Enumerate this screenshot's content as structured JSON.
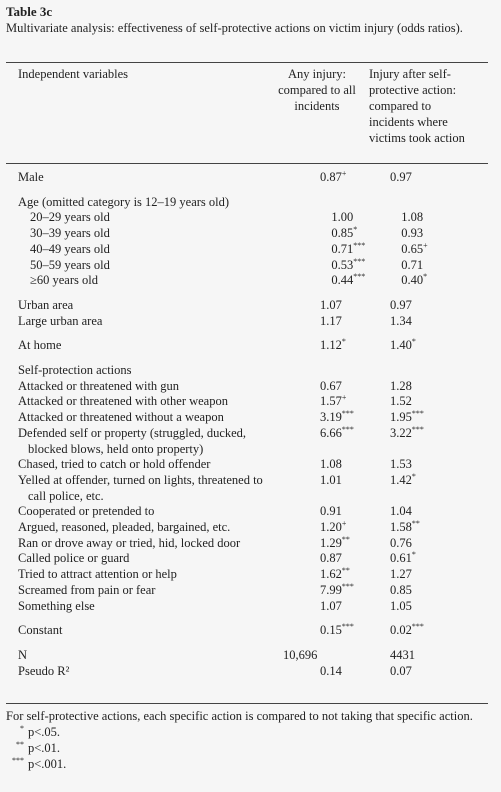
{
  "table_label": "Table 3c",
  "caption": "Multivariate analysis: effectiveness of self-protective actions on victim injury (odds ratios).",
  "table": {
    "headers": [
      "Independent variables",
      "Any injury: compared to all incidents",
      "Injury after self-protective action: compared to incidents where victims took action"
    ],
    "groups": [
      {
        "rows": [
          {
            "label": "Male",
            "any": "0.87",
            "any_sig": "+",
            "after": "0.97"
          }
        ]
      },
      {
        "heading": "Age (omitted category is 12–19 years old)",
        "rows": [
          {
            "label": "20–29 years old",
            "any": "1.00",
            "after": "1.08"
          },
          {
            "label": "30–39 years old",
            "any": "0.85",
            "any_sig": "*",
            "after": "0.93"
          },
          {
            "label": "40–49 years old",
            "any": "0.71",
            "any_sig": "***",
            "after": "0.65",
            "after_sig": "+"
          },
          {
            "label": "50–59 years old",
            "any": "0.53",
            "any_sig": "***",
            "after": "0.71"
          },
          {
            "label": "≥60 years old",
            "any": "0.44",
            "any_sig": "***",
            "after": "0.40",
            "after_sig": "*"
          }
        ]
      },
      {
        "rows": [
          {
            "label": "Urban area",
            "any": "1.07",
            "after": "0.97"
          },
          {
            "label": "Large urban area",
            "any": "1.17",
            "after": "1.34"
          }
        ]
      },
      {
        "rows": [
          {
            "label": "At home",
            "any": "1.12",
            "any_sig": "*",
            "after": "1.40",
            "after_sig": "*"
          }
        ]
      },
      {
        "heading": "Self-protection actions",
        "rows": [
          {
            "label": "Attacked or threatened with gun",
            "any": "0.67",
            "after": "1.28"
          },
          {
            "label": "Attacked or threatened with other weapon",
            "any": "1.57",
            "any_sig": "+",
            "after": "1.52"
          },
          {
            "label": "Attacked or threatened without a weapon",
            "any": "3.19",
            "any_sig": "***",
            "after": "1.95",
            "after_sig": "***"
          },
          {
            "label": "Defended self or property (struggled, ducked, blocked blows, held onto property)",
            "any": "6.66",
            "any_sig": "***",
            "after": "3.22",
            "after_sig": "***"
          },
          {
            "label": "Chased, tried to catch or hold offender",
            "any": "1.08",
            "after": "1.53"
          },
          {
            "label": "Yelled at offender, turned on lights, threatened to call police, etc.",
            "any": "1.01",
            "after": "1.42",
            "after_sig": "*"
          },
          {
            "label": "Cooperated or pretended to",
            "any": "0.91",
            "after": "1.04"
          },
          {
            "label": "Argued, reasoned, pleaded, bargained, etc.",
            "any": "1.20",
            "any_sig": "+",
            "after": "1.58",
            "after_sig": "**"
          },
          {
            "label": "Ran or drove away or tried, hid, locked door",
            "any": "1.29",
            "any_sig": "**",
            "after": "0.76"
          },
          {
            "label": "Called police or guard",
            "any": "0.87",
            "after": "0.61",
            "after_sig": "*"
          },
          {
            "label": "Tried to attract attention or help",
            "any": "1.62",
            "any_sig": "**",
            "after": "1.27"
          },
          {
            "label": "Screamed from pain or fear",
            "any": "7.99",
            "any_sig": "***",
            "after": "0.85"
          },
          {
            "label": "Something else",
            "any": "1.07",
            "after": "1.05"
          }
        ]
      },
      {
        "rows": [
          {
            "label": "Constant",
            "any": "0.15",
            "any_sig": "***",
            "after": "0.02",
            "after_sig": "***"
          }
        ]
      },
      {
        "rows": [
          {
            "label": "N",
            "any": "10,696",
            "after": "4431"
          },
          {
            "label": "Pseudo R²",
            "any": "0.14",
            "after": "0.07"
          }
        ]
      }
    ]
  },
  "notes": {
    "text": "For self-protective actions, each specific action is compared to not taking that specific action.",
    "legend": [
      {
        "symbol": "*",
        "text": "p<.05."
      },
      {
        "symbol": "**",
        "text": "p<.01."
      },
      {
        "symbol": "***",
        "text": "p<.001."
      }
    ]
  }
}
